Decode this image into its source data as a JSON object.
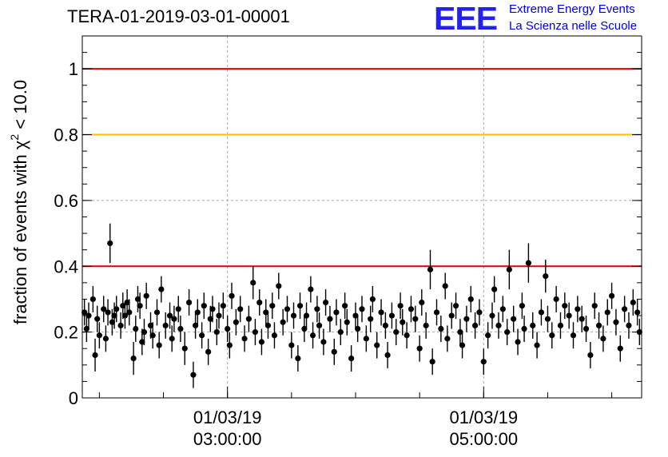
{
  "chart_data": {
    "type": "scatter",
    "title": "TERA-01-2019-03-01-00001",
    "ylabel_prefix": "fraction of events with ",
    "ylabel_chi": "χ",
    "ylabel_sup": "2",
    "ylabel_suffix": " < 10.0",
    "ylim": [
      0,
      1.1
    ],
    "yticks": [
      0,
      0.2,
      0.4,
      0.6,
      0.8,
      1
    ],
    "ytick_labels": [
      "0",
      "0.2",
      "0.4",
      "0.6",
      "0.8",
      "1"
    ],
    "xlim": [
      "2019-03-01 01:52:00",
      "2019-03-01 06:14:00"
    ],
    "xticks": [
      {
        "time": "2019-03-01 03:00:00",
        "date_label": "01/03/19",
        "time_label": "03:00:00"
      },
      {
        "time": "2019-03-01 05:00:00",
        "date_label": "01/03/19",
        "time_label": "05:00:00"
      }
    ],
    "minor_tick_minutes": 30,
    "grid": true,
    "reference_lines": [
      {
        "y": 1.0,
        "color": "#e00000"
      },
      {
        "y": 0.8,
        "color": "#ffc000"
      },
      {
        "y": 0.4,
        "color": "#e00000"
      }
    ],
    "series": [
      {
        "x": [
          "2019-03-01 01:53:00",
          "2019-03-01 01:54:00",
          "2019-03-01 01:55:00",
          "2019-03-01 01:57:00",
          "2019-03-01 01:58:00",
          "2019-03-01 01:59:00",
          "2019-03-01 02:00:00",
          "2019-03-01 02:02:00",
          "2019-03-01 02:03:00",
          "2019-03-01 02:04:00",
          "2019-03-01 02:05:00",
          "2019-03-01 02:06:00",
          "2019-03-01 02:07:00",
          "2019-03-01 02:08:00",
          "2019-03-01 02:10:00",
          "2019-03-01 02:11:00",
          "2019-03-01 02:12:00",
          "2019-03-01 02:13:00",
          "2019-03-01 02:14:00",
          "2019-03-01 02:16:00",
          "2019-03-01 02:17:00",
          "2019-03-01 02:18:00",
          "2019-03-01 02:19:00",
          "2019-03-01 02:20:00",
          "2019-03-01 02:21:00",
          "2019-03-01 02:22:00",
          "2019-03-01 02:24:00",
          "2019-03-01 02:25:00",
          "2019-03-01 02:27:00",
          "2019-03-01 02:28:00",
          "2019-03-01 02:29:00",
          "2019-03-01 02:31:00",
          "2019-03-01 02:33:00",
          "2019-03-01 02:34:00",
          "2019-03-01 02:35:00",
          "2019-03-01 02:37:00",
          "2019-03-01 02:38:00",
          "2019-03-01 02:40:00",
          "2019-03-01 02:42:00",
          "2019-03-01 02:44:00",
          "2019-03-01 02:45:00",
          "2019-03-01 02:46:00",
          "2019-03-01 02:48:00",
          "2019-03-01 02:49:00",
          "2019-03-01 02:51:00",
          "2019-03-01 02:52:00",
          "2019-03-01 02:53:00",
          "2019-03-01 02:55:00",
          "2019-03-01 02:56:00",
          "2019-03-01 02:58:00",
          "2019-03-01 03:00:00",
          "2019-03-01 03:01:00",
          "2019-03-01 03:02:00",
          "2019-03-01 03:04:00",
          "2019-03-01 03:06:00",
          "2019-03-01 03:08:00",
          "2019-03-01 03:10:00",
          "2019-03-01 03:12:00",
          "2019-03-01 03:13:00",
          "2019-03-01 03:15:00",
          "2019-03-01 03:16:00",
          "2019-03-01 03:18:00",
          "2019-03-01 03:19:00",
          "2019-03-01 03:21:00",
          "2019-03-01 03:22:00",
          "2019-03-01 03:24:00",
          "2019-03-01 03:26:00",
          "2019-03-01 03:28:00",
          "2019-03-01 03:30:00",
          "2019-03-01 03:31:00",
          "2019-03-01 03:33:00",
          "2019-03-01 03:34:00",
          "2019-03-01 03:36:00",
          "2019-03-01 03:37:00",
          "2019-03-01 03:39:00",
          "2019-03-01 03:40:00",
          "2019-03-01 03:42:00",
          "2019-03-01 03:43:00",
          "2019-03-01 03:45:00",
          "2019-03-01 03:46:00",
          "2019-03-01 03:48:00",
          "2019-03-01 03:50:00",
          "2019-03-01 03:51:00",
          "2019-03-01 03:53:00",
          "2019-03-01 03:55:00",
          "2019-03-01 03:56:00",
          "2019-03-01 03:58:00",
          "2019-03-01 04:00:00",
          "2019-03-01 04:01:00",
          "2019-03-01 04:03:00",
          "2019-03-01 04:05:00",
          "2019-03-01 04:07:00",
          "2019-03-01 04:08:00",
          "2019-03-01 04:10:00",
          "2019-03-01 04:12:00",
          "2019-03-01 04:14:00",
          "2019-03-01 04:15:00",
          "2019-03-01 04:17:00",
          "2019-03-01 04:19:00",
          "2019-03-01 04:21:00",
          "2019-03-01 04:22:00",
          "2019-03-01 04:24:00",
          "2019-03-01 04:26:00",
          "2019-03-01 04:28:00",
          "2019-03-01 04:30:00",
          "2019-03-01 04:31:00",
          "2019-03-01 04:33:00",
          "2019-03-01 04:35:00",
          "2019-03-01 04:36:00",
          "2019-03-01 04:38:00",
          "2019-03-01 04:40:00",
          "2019-03-01 04:42:00",
          "2019-03-01 04:43:00",
          "2019-03-01 04:45:00",
          "2019-03-01 04:47:00",
          "2019-03-01 04:49:00",
          "2019-03-01 04:50:00",
          "2019-03-01 04:52:00",
          "2019-03-01 04:54:00",
          "2019-03-01 04:56:00",
          "2019-03-01 04:58:00",
          "2019-03-01 05:00:00",
          "2019-03-01 05:02:00",
          "2019-03-01 05:04:00",
          "2019-03-01 05:05:00",
          "2019-03-01 05:07:00",
          "2019-03-01 05:09:00",
          "2019-03-01 05:11:00",
          "2019-03-01 05:12:00",
          "2019-03-01 05:14:00",
          "2019-03-01 05:16:00",
          "2019-03-01 05:18:00",
          "2019-03-01 05:19:00",
          "2019-03-01 05:21:00",
          "2019-03-01 05:23:00",
          "2019-03-01 05:25:00",
          "2019-03-01 05:27:00",
          "2019-03-01 05:29:00",
          "2019-03-01 05:30:00",
          "2019-03-01 05:32:00",
          "2019-03-01 05:34:00",
          "2019-03-01 05:36:00",
          "2019-03-01 05:38:00",
          "2019-03-01 05:40:00",
          "2019-03-01 05:42:00",
          "2019-03-01 05:44:00",
          "2019-03-01 05:46:00",
          "2019-03-01 05:48:00",
          "2019-03-01 05:50:00",
          "2019-03-01 05:52:00",
          "2019-03-01 05:54:00",
          "2019-03-01 05:56:00",
          "2019-03-01 05:58:00",
          "2019-03-01 06:00:00",
          "2019-03-01 06:02:00",
          "2019-03-01 06:04:00",
          "2019-03-01 06:06:00",
          "2019-03-01 06:08:00",
          "2019-03-01 06:10:00",
          "2019-03-01 06:12:00",
          "2019-03-01 06:13:00"
        ],
        "values": [
          0.26,
          0.21,
          0.25,
          0.3,
          0.13,
          0.24,
          0.19,
          0.27,
          0.18,
          0.26,
          0.47,
          0.23,
          0.25,
          0.27,
          0.22,
          0.28,
          0.25,
          0.29,
          0.26,
          0.12,
          0.21,
          0.3,
          0.28,
          0.17,
          0.2,
          0.31,
          0.22,
          0.19,
          0.26,
          0.16,
          0.33,
          0.22,
          0.25,
          0.18,
          0.24,
          0.27,
          0.21,
          0.15,
          0.29,
          0.07,
          0.22,
          0.26,
          0.19,
          0.28,
          0.14,
          0.24,
          0.27,
          0.2,
          0.25,
          0.28,
          0.21,
          0.16,
          0.31,
          0.23,
          0.27,
          0.18,
          0.24,
          0.35,
          0.2,
          0.29,
          0.17,
          0.26,
          0.22,
          0.28,
          0.19,
          0.34,
          0.23,
          0.27,
          0.16,
          0.25,
          0.12,
          0.28,
          0.21,
          0.25,
          0.33,
          0.19,
          0.27,
          0.22,
          0.17,
          0.29,
          0.24,
          0.14,
          0.26,
          0.2,
          0.28,
          0.23,
          0.12,
          0.25,
          0.21,
          0.27,
          0.18,
          0.24,
          0.3,
          0.16,
          0.26,
          0.22,
          0.13,
          0.25,
          0.2,
          0.28,
          0.23,
          0.19,
          0.27,
          0.24,
          0.15,
          0.29,
          0.22,
          0.39,
          0.11,
          0.26,
          0.21,
          0.34,
          0.18,
          0.25,
          0.28,
          0.2,
          0.16,
          0.24,
          0.3,
          0.22,
          0.26,
          0.11,
          0.19,
          0.25,
          0.33,
          0.22,
          0.27,
          0.2,
          0.39,
          0.24,
          0.17,
          0.28,
          0.21,
          0.41,
          0.22,
          0.16,
          0.26,
          0.37,
          0.24,
          0.19,
          0.3,
          0.22,
          0.28,
          0.25,
          0.19,
          0.27,
          0.24,
          0.21,
          0.13,
          0.28,
          0.22,
          0.18,
          0.26,
          0.31,
          0.23,
          0.15,
          0.27,
          0.22,
          0.29,
          0.26,
          0.2
        ],
        "err": [
          0.04,
          0.04,
          0.04,
          0.04,
          0.05,
          0.04,
          0.04,
          0.04,
          0.04,
          0.04,
          0.06,
          0.04,
          0.04,
          0.04,
          0.04,
          0.04,
          0.04,
          0.04,
          0.04,
          0.05,
          0.04,
          0.04,
          0.04,
          0.04,
          0.04,
          0.04,
          0.04,
          0.04,
          0.04,
          0.04,
          0.04,
          0.04,
          0.04,
          0.04,
          0.04,
          0.04,
          0.04,
          0.05,
          0.04,
          0.04,
          0.04,
          0.04,
          0.04,
          0.04,
          0.04,
          0.04,
          0.04,
          0.04,
          0.04,
          0.04,
          0.04,
          0.04,
          0.04,
          0.04,
          0.04,
          0.04,
          0.04,
          0.05,
          0.04,
          0.04,
          0.04,
          0.04,
          0.04,
          0.04,
          0.04,
          0.04,
          0.04,
          0.04,
          0.04,
          0.04,
          0.04,
          0.04,
          0.04,
          0.04,
          0.04,
          0.04,
          0.04,
          0.04,
          0.04,
          0.04,
          0.04,
          0.04,
          0.04,
          0.04,
          0.04,
          0.04,
          0.04,
          0.04,
          0.04,
          0.04,
          0.04,
          0.04,
          0.04,
          0.04,
          0.04,
          0.04,
          0.04,
          0.04,
          0.04,
          0.04,
          0.04,
          0.04,
          0.04,
          0.04,
          0.04,
          0.04,
          0.04,
          0.06,
          0.04,
          0.04,
          0.04,
          0.04,
          0.04,
          0.04,
          0.04,
          0.04,
          0.04,
          0.04,
          0.04,
          0.04,
          0.04,
          0.04,
          0.04,
          0.04,
          0.04,
          0.04,
          0.04,
          0.04,
          0.06,
          0.04,
          0.04,
          0.04,
          0.04,
          0.06,
          0.04,
          0.04,
          0.04,
          0.05,
          0.04,
          0.04,
          0.04,
          0.04,
          0.04,
          0.04,
          0.04,
          0.04,
          0.04,
          0.04,
          0.04,
          0.04,
          0.04,
          0.04,
          0.04,
          0.04,
          0.04,
          0.04,
          0.04,
          0.04,
          0.04,
          0.04,
          0.04
        ]
      }
    ]
  },
  "logo": {
    "text": "EEE",
    "line1": "Extreme Energy Events",
    "line2": "La Scienza nelle Scuole"
  },
  "colors": {
    "points": "#000000",
    "logo": "#2222ee",
    "logo_text": "#0000dd",
    "grid": "#a8a8a8"
  }
}
